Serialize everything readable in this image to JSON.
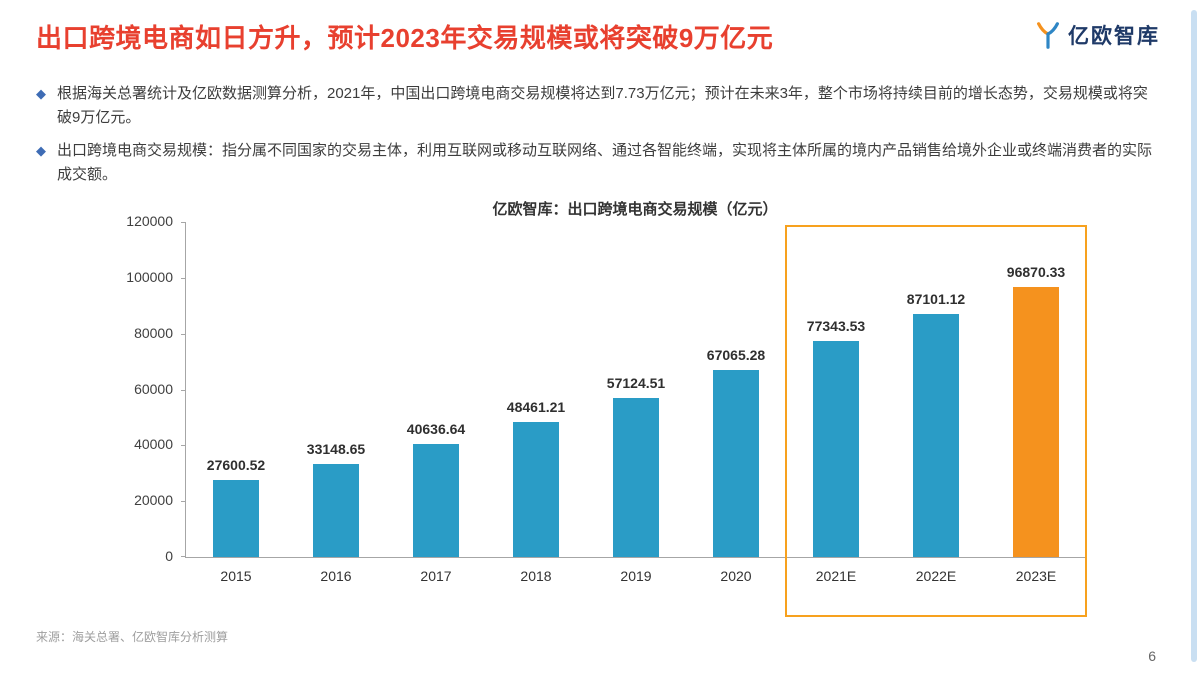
{
  "header": {
    "title": "出口跨境电商如日方升，预计2023年交易规模或将突破9万亿元",
    "logo_text": "亿欧智库"
  },
  "bullets": [
    {
      "text": "根据海关总署统计及亿欧数据测算分析，2021年，中国出口跨境电商交易规模将达到7.73万亿元；预计在未来3年，整个市场将持续目前的增长态势，交易规模或将突破9万亿元。"
    },
    {
      "text": "出口跨境电商交易规模：指分属不同国家的交易主体，利用互联网或移动互联网络、通过各智能终端，实现将主体所属的境内产品销售给境外企业或终端消费者的实际成交额。"
    }
  ],
  "chart_data": {
    "type": "bar",
    "title": "亿欧智库：出口跨境电商交易规模（亿元）",
    "categories": [
      "2015",
      "2016",
      "2017",
      "2018",
      "2019",
      "2020",
      "2021E",
      "2022E",
      "2023E"
    ],
    "values": [
      27600.52,
      33148.65,
      40636.64,
      48461.21,
      57124.51,
      67065.28,
      77343.53,
      87101.12,
      96870.33
    ],
    "value_labels": [
      "27600.52",
      "33148.65",
      "40636.64",
      "48461.21",
      "57124.51",
      "67065.28",
      "77343.53",
      "87101.12",
      "96870.33"
    ],
    "ylim": [
      0,
      120000
    ],
    "ytick_interval": 20000,
    "grid": false,
    "legend": "none",
    "bar_color": "#2A9CC6",
    "last_bar_color": "#F5921E",
    "highlight_box": {
      "from_category": "2021E",
      "to_category": "2023E",
      "border_color": "#F7A11E"
    }
  },
  "footer": {
    "source": "来源：海关总署、亿欧智库分析测算",
    "page_number": "6"
  },
  "colors": {
    "title": "#E8402F",
    "bullet_marker": "#3E6CB5",
    "logo_text": "#1F3A68",
    "side_strip": "#C9DFF2",
    "logo_blue": "#2E86C5",
    "logo_orange": "#F5921E"
  }
}
